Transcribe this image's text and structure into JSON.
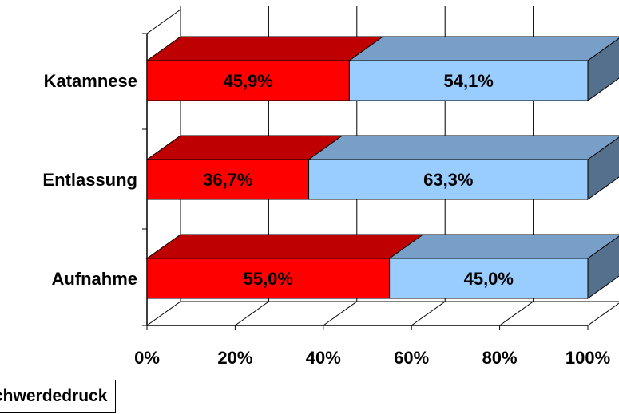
{
  "chart_data": {
    "type": "bar",
    "orientation": "horizontal",
    "stacked": "percent",
    "three_d": true,
    "categories": [
      "Katamnese",
      "Entlassung",
      "Aufnahme"
    ],
    "series": [
      {
        "values": [
          45.9,
          36.7,
          55.0
        ],
        "labels": [
          "45,9%",
          "36,7%",
          "55,0%"
        ],
        "color": "#ff0000"
      },
      {
        "values": [
          54.1,
          63.3,
          45.0
        ],
        "labels": [
          "54,1%",
          "63,3%",
          "45,0%"
        ],
        "color": "#99ccff"
      }
    ],
    "xlim": [
      0,
      100
    ],
    "x_ticks": [
      0,
      20,
      40,
      60,
      80,
      100
    ],
    "x_tick_labels": [
      "0%",
      "20%",
      "40%",
      "60%",
      "80%",
      "100%"
    ],
    "grid": true,
    "legend_fragment": "chwerdedruck"
  }
}
